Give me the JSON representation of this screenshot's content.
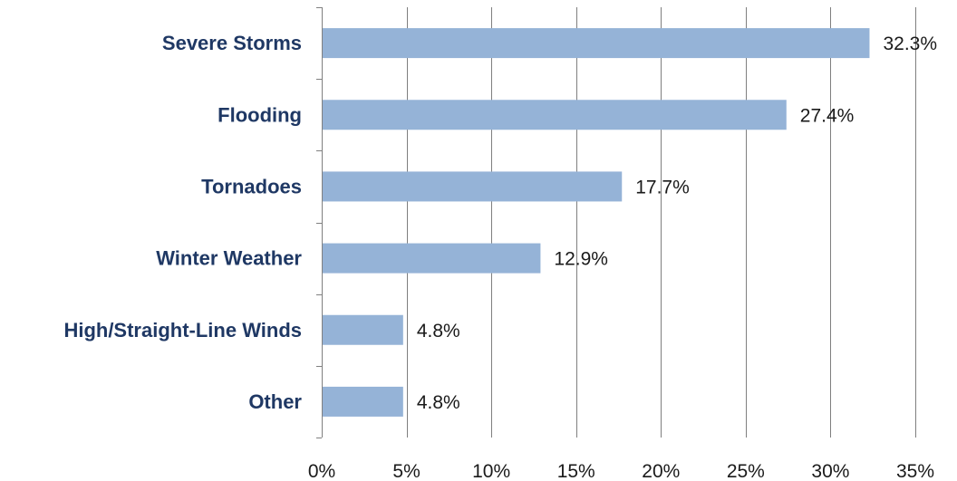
{
  "chart_data": {
    "type": "bar",
    "orientation": "horizontal",
    "title": "",
    "xlabel": "",
    "ylabel": "",
    "categories": [
      "Severe Storms",
      "Flooding",
      "Tornadoes",
      "Winter Weather",
      "High/Straight-Line Winds",
      "Other"
    ],
    "values": [
      32.3,
      27.4,
      17.7,
      12.9,
      4.8,
      4.8
    ],
    "data_labels": [
      "32.3%",
      "27.4%",
      "17.7%",
      "12.9%",
      "4.8%",
      "4.8%"
    ],
    "xlim": [
      0,
      35
    ],
    "x_ticks": [
      0,
      5,
      10,
      15,
      20,
      25,
      30,
      35
    ],
    "x_tick_labels": [
      "0%",
      "5%",
      "10%",
      "15%",
      "20%",
      "25%",
      "30%",
      "35%"
    ],
    "grid": "vertical",
    "legend": "none",
    "colors": {
      "bar": "#95b3d7",
      "grid": "#7f7f7f",
      "axis": "#808080",
      "category_text": "#1f3864",
      "value_text": "#1a1a1a"
    }
  }
}
